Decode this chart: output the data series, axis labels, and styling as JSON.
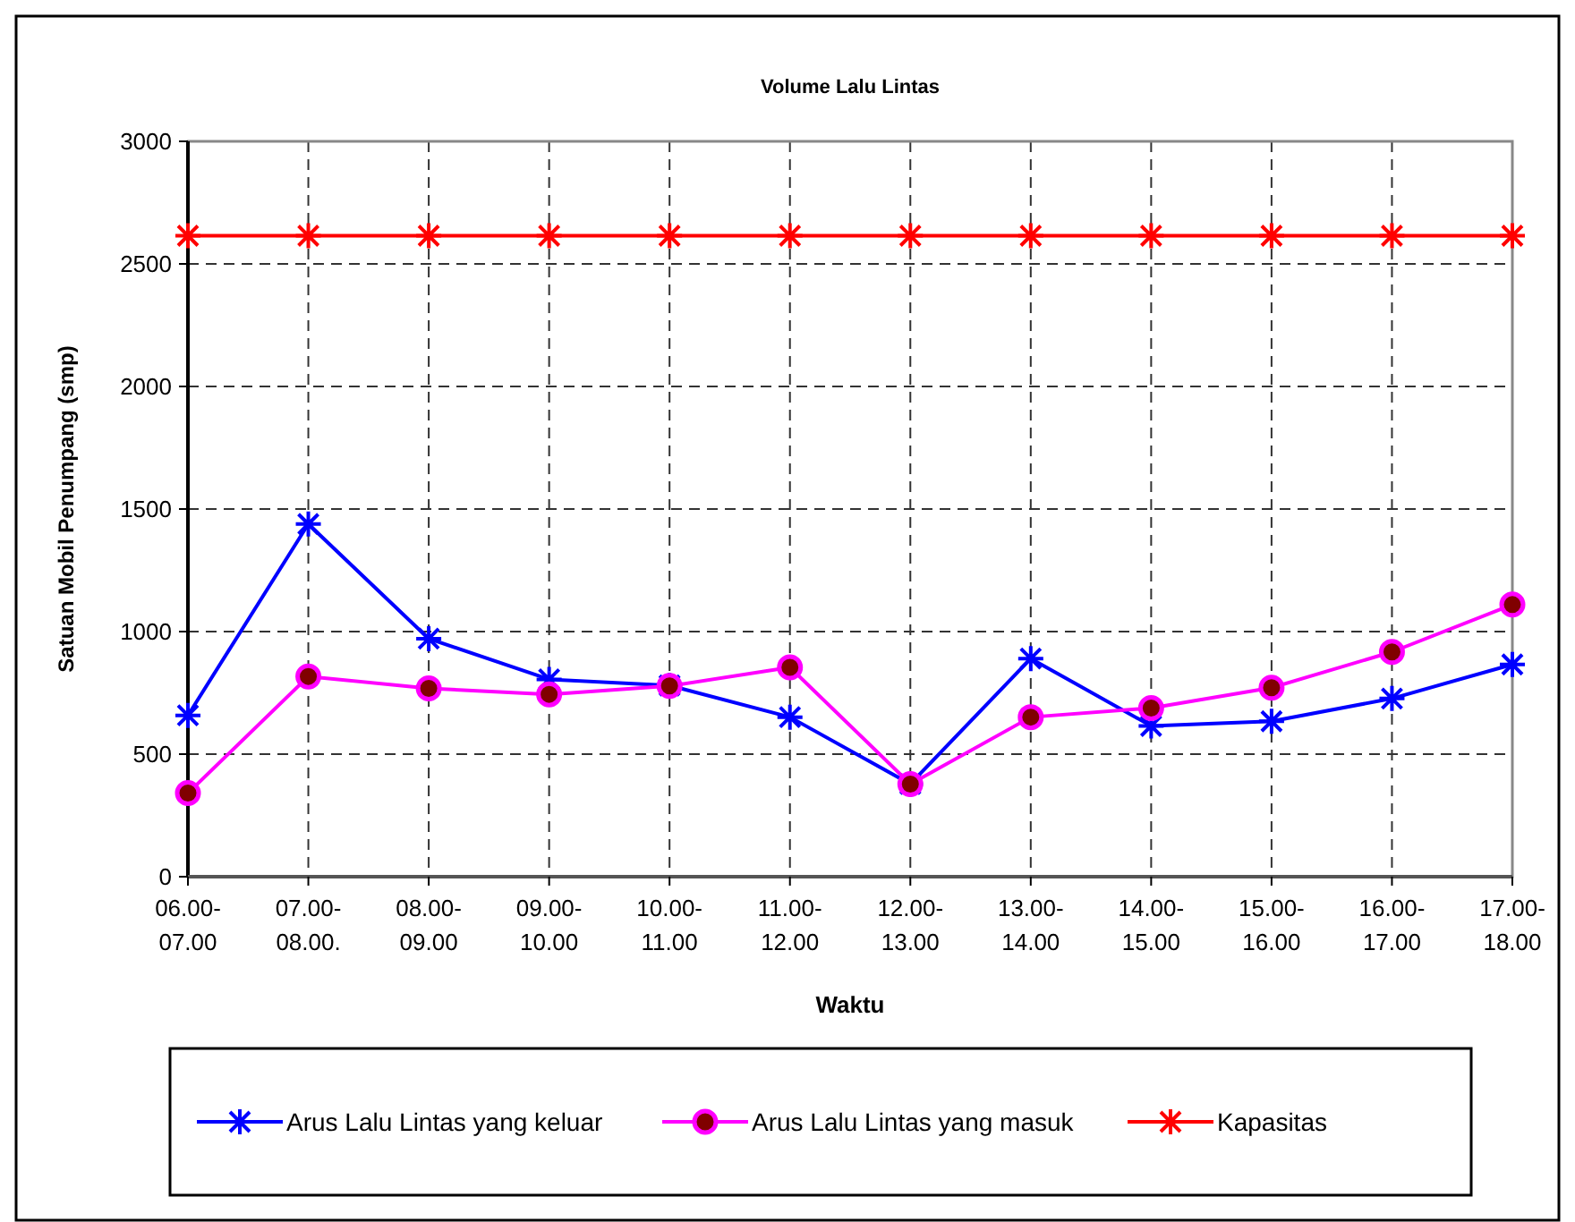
{
  "chart_data": {
    "type": "line",
    "title": "Volume Lalu Lintas",
    "xlabel": "Waktu",
    "ylabel": "Satuan Mobil Penumpang (smp)",
    "categories": [
      "06.00-07.00",
      "07.00-08.00.",
      "08.00-09.00",
      "09.00-10.00",
      "10.00-11.00",
      "11.00-12.00",
      "12.00-13.00",
      "13.00-14.00",
      "14.00-15.00",
      "15.00-16.00",
      "16.00-17.00",
      "17.00-18.00"
    ],
    "series": [
      {
        "name": "Arus Lalu Lintas yang keluar",
        "color": "#0000ff",
        "marker": "cross",
        "values": [
          658,
          1439,
          971,
          805,
          780,
          651,
          378,
          890,
          615,
          634,
          727,
          866
        ]
      },
      {
        "name": "Arus Lalu Lintas yang masuk",
        "color": "#ff00ff",
        "marker": "circle",
        "values": [
          341,
          817,
          768,
          744,
          778,
          854,
          378,
          651,
          688,
          771,
          917,
          1110
        ]
      },
      {
        "name": "Kapasitas",
        "color": "#ff0000",
        "marker": "cross",
        "values": [
          2615,
          2615,
          2615,
          2615,
          2615,
          2615,
          2615,
          2615,
          2615,
          2615,
          2615,
          2615
        ]
      }
    ],
    "ylim": [
      0,
      3000
    ],
    "yticks": [
      0,
      500,
      1000,
      1500,
      2000,
      2500,
      3000
    ],
    "grid": true,
    "legend": "bottom",
    "line_style": "solid"
  }
}
